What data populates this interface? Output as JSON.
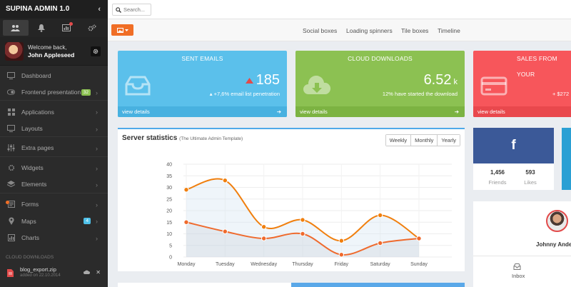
{
  "app": {
    "title": "SUPINA ADMIN 1.0"
  },
  "sidebar": {
    "tabs": [
      {
        "icon": "users-icon",
        "active": true
      },
      {
        "icon": "bell-icon"
      },
      {
        "icon": "bar-chart-icon",
        "has_alert": true
      },
      {
        "icon": "gears-icon"
      }
    ],
    "user": {
      "welcome": "Welcome back,",
      "name": "John Appleseed"
    },
    "items": [
      {
        "label": "Dashboard",
        "icon": "monitor-icon"
      },
      {
        "label": "Frontend presentation",
        "icon": "toggle-icon",
        "badge": "32",
        "badge_color": "#8cc152",
        "chevron": true
      },
      {
        "label": "Applications",
        "icon": "grid-icon",
        "chevron": true
      },
      {
        "label": "Layouts",
        "icon": "layout-icon",
        "chevron": true
      },
      {
        "label": "Extra pages",
        "icon": "sliders-icon",
        "chevron": true
      },
      {
        "label": "Widgets",
        "icon": "gear-icon",
        "chevron": true
      },
      {
        "label": "Elements",
        "icon": "layers-icon",
        "chevron": true
      },
      {
        "label": "Forms",
        "icon": "form-icon",
        "chevron": true
      },
      {
        "label": "Maps",
        "icon": "map-pin-icon",
        "badge": "4",
        "badge_color": "#4fc1e9",
        "chevron": true
      },
      {
        "label": "Charts",
        "icon": "chart-icon",
        "chevron": true
      }
    ],
    "downloads_title": "Cloud downloads",
    "download": {
      "file": "blog_export.zip",
      "date": "added on 22.10.2014"
    }
  },
  "topbar": {
    "search_placeholder": "Search..."
  },
  "subnav": [
    "Social boxes",
    "Loading spinners",
    "Tile boxes",
    "Timeline"
  ],
  "stats": [
    {
      "title": "SENT EMAILS",
      "value": "185",
      "unit": "",
      "sub": "+7,6% email list penetration",
      "footer": "view details",
      "color": "#5bc0eb",
      "footer_color": "#48b1e0",
      "icon": "inbox-icon",
      "trend": "up"
    },
    {
      "title": "CLOUD DOWNLOADS",
      "value": "6.52",
      "unit": "k",
      "sub": "12% have started the download",
      "footer": "view details",
      "color": "#8cc152",
      "footer_color": "#7cb342",
      "icon": "cloud-download-icon"
    },
    {
      "title": "SALES FROM YOUR",
      "value": "",
      "unit": "",
      "sub": "+ $272",
      "footer": "view details",
      "color": "#f7565b",
      "footer_color": "#e9484d",
      "icon": "credit-card-icon"
    }
  ],
  "chart_panel": {
    "title": "Server statistics",
    "subtitle": "(The Ultimate Admin Template)",
    "ranges": [
      "Weekly",
      "Monthly",
      "Yearly"
    ]
  },
  "chart_data": {
    "type": "line",
    "categories": [
      "Monday",
      "Tuesday",
      "Wednesday",
      "Thursday",
      "Friday",
      "Saturday",
      "Sunday"
    ],
    "series": [
      {
        "values": [
          29,
          33,
          13,
          16,
          7,
          18,
          8
        ],
        "color": "#f07f0e"
      },
      {
        "values": [
          15,
          11,
          8,
          10,
          1,
          6,
          8
        ],
        "color": "#ef6a2d"
      }
    ],
    "ylim": [
      0,
      40
    ],
    "yticks": [
      0,
      5,
      10,
      15,
      20,
      25,
      30,
      35,
      40
    ],
    "grid": true
  },
  "facebook": {
    "stats": [
      {
        "value": "1,456",
        "label": "Friends"
      },
      {
        "value": "593",
        "label": "Likes"
      }
    ]
  },
  "profile": {
    "name": "Johnny Ander",
    "inbox_label": "Inbox"
  }
}
